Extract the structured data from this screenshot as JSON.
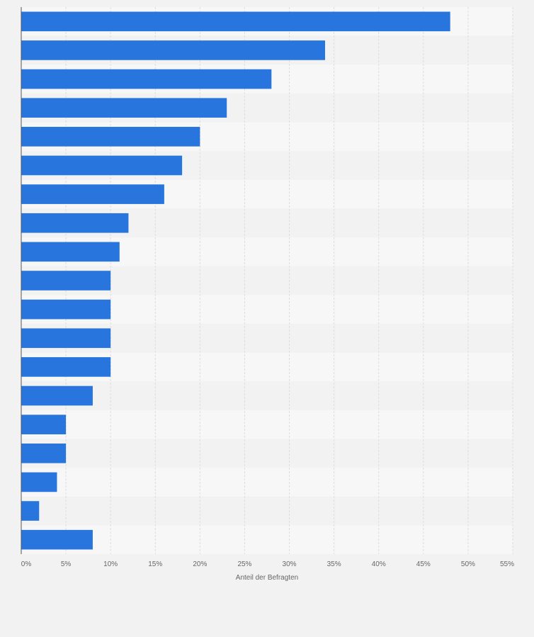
{
  "chart_data": {
    "type": "bar",
    "orientation": "horizontal",
    "xlabel": "Anteil der Befragten",
    "xlim": [
      0,
      55
    ],
    "x_ticks": [
      0,
      5,
      10,
      15,
      20,
      25,
      30,
      35,
      40,
      45,
      50,
      55
    ],
    "x_tick_labels": [
      "0%",
      "5%",
      "10%",
      "15%",
      "20%",
      "25%",
      "30%",
      "35%",
      "40%",
      "45%",
      "50%",
      "55%"
    ],
    "values": [
      48,
      34,
      28,
      23,
      20,
      18,
      16,
      12,
      11,
      10,
      10,
      10,
      10,
      8,
      5,
      5,
      4,
      2,
      8
    ],
    "grid": true,
    "bar_color": "#2876dd",
    "band_colors": [
      "#f7f7f7",
      "#f2f2f2"
    ],
    "gridline_color": "#dddddd",
    "axis_color": "#555555",
    "background": "#f2f2f2"
  }
}
